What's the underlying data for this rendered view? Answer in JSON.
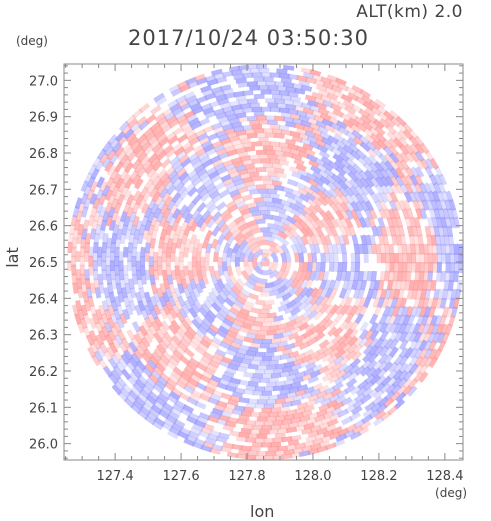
{
  "header": {
    "altitude": "ALT(km) 2.0",
    "datetime": "2017/10/24 03:50:30"
  },
  "chart_data": {
    "type": "heatmap",
    "title": "2017/10/24 03:50:30",
    "subtitle": "ALT(km) 2.0",
    "xlabel": "lon",
    "ylabel": "lat",
    "x_unit": "(deg)",
    "y_unit": "(deg)",
    "xlim": [
      127.245,
      128.455
    ],
    "ylim": [
      25.955,
      27.045
    ],
    "x_ticks": [
      127.4,
      127.6,
      127.8,
      128.0,
      128.2,
      128.4
    ],
    "x_tick_labels": [
      "127.4",
      "127.6",
      "127.8",
      "128.0",
      "128.2",
      "128.4"
    ],
    "y_ticks": [
      26.0,
      26.1,
      26.2,
      26.3,
      26.4,
      26.5,
      26.6,
      26.7,
      26.8,
      26.9,
      27.0
    ],
    "y_tick_labels": [
      "26.0",
      "26.1",
      "26.2",
      "26.3",
      "26.4",
      "26.5",
      "26.6",
      "26.7",
      "26.8",
      "26.9",
      "27.0"
    ],
    "center": {
      "lon": 127.855,
      "lat": 26.5
    },
    "radius_lat_deg": 0.545,
    "colors": {
      "positive": "#ff9a9a",
      "negative": "#9a9aff",
      "neutral": "#ffffff",
      "axis": "#888888"
    }
  }
}
